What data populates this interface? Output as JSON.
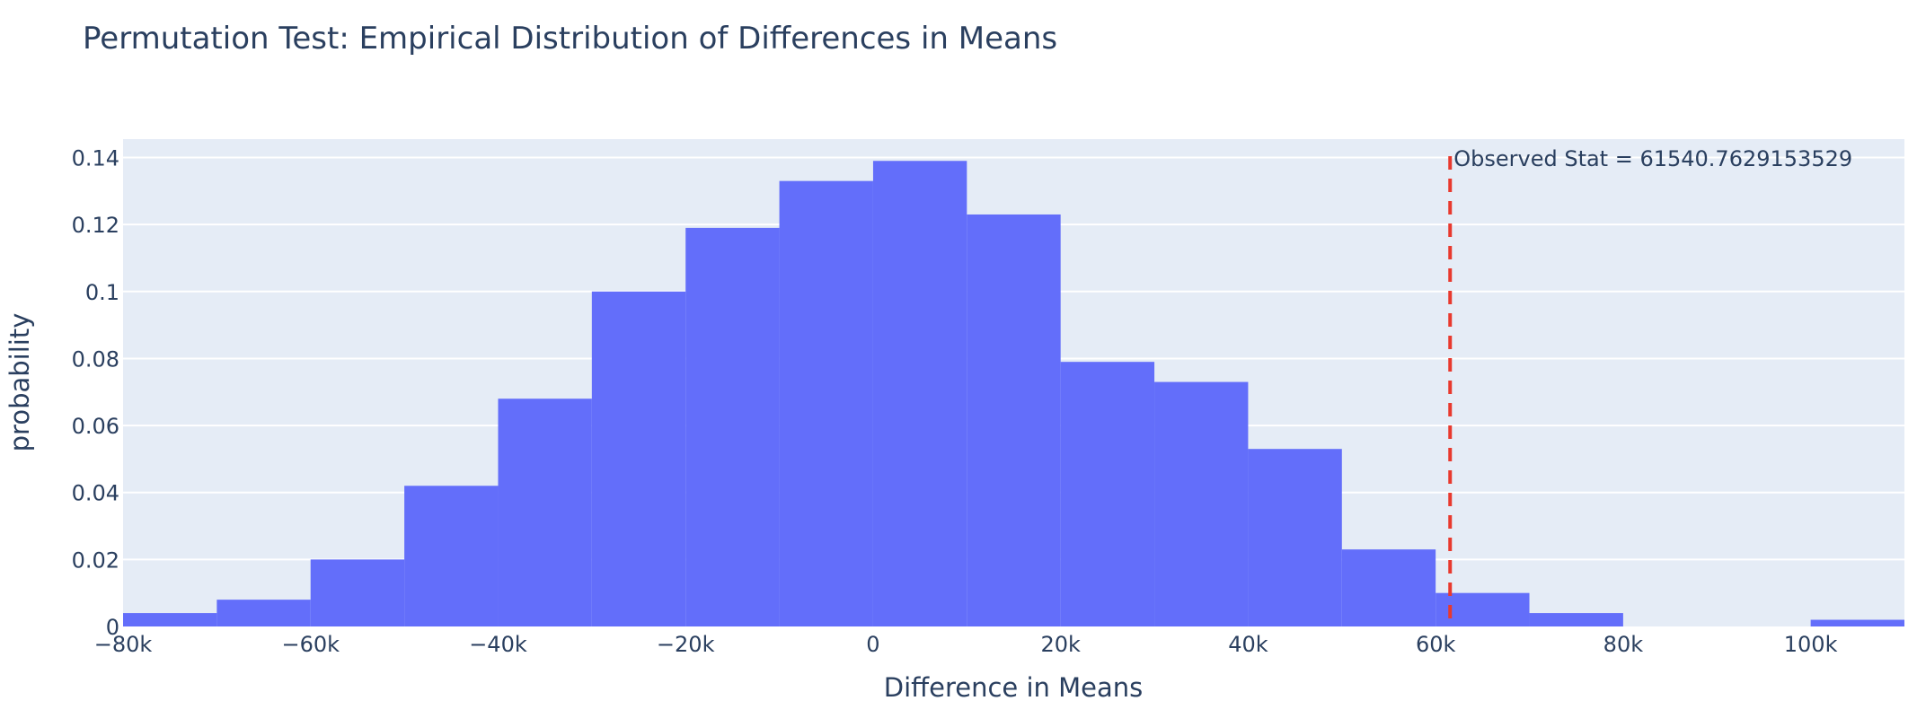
{
  "chart_data": {
    "type": "bar",
    "title": "Permutation Test: Empirical Distribution of Differences in Means",
    "xlabel": "Difference in Means",
    "ylabel": "probability",
    "xlim": [
      -80000,
      110000
    ],
    "ylim": [
      0,
      0.1455
    ],
    "bin_width": 10000,
    "bins": [
      {
        "start": -80000,
        "end": -70000,
        "value": 0.004
      },
      {
        "start": -70000,
        "end": -60000,
        "value": 0.008
      },
      {
        "start": -60000,
        "end": -50000,
        "value": 0.02
      },
      {
        "start": -50000,
        "end": -40000,
        "value": 0.042
      },
      {
        "start": -40000,
        "end": -30000,
        "value": 0.068
      },
      {
        "start": -30000,
        "end": -20000,
        "value": 0.1
      },
      {
        "start": -20000,
        "end": -10000,
        "value": 0.119
      },
      {
        "start": -10000,
        "end": 0,
        "value": 0.133
      },
      {
        "start": 0,
        "end": 10000,
        "value": 0.139
      },
      {
        "start": 10000,
        "end": 20000,
        "value": 0.123
      },
      {
        "start": 20000,
        "end": 30000,
        "value": 0.079
      },
      {
        "start": 30000,
        "end": 40000,
        "value": 0.073
      },
      {
        "start": 40000,
        "end": 50000,
        "value": 0.053
      },
      {
        "start": 50000,
        "end": 60000,
        "value": 0.023
      },
      {
        "start": 60000,
        "end": 70000,
        "value": 0.01
      },
      {
        "start": 70000,
        "end": 80000,
        "value": 0.004
      },
      {
        "start": 100000,
        "end": 110000,
        "value": 0.002
      }
    ],
    "x_ticks": [
      {
        "value": -80000,
        "label": "−80k"
      },
      {
        "value": -60000,
        "label": "−60k"
      },
      {
        "value": -40000,
        "label": "−40k"
      },
      {
        "value": -20000,
        "label": "−20k"
      },
      {
        "value": 0,
        "label": "0"
      },
      {
        "value": 20000,
        "label": "20k"
      },
      {
        "value": 40000,
        "label": "40k"
      },
      {
        "value": 60000,
        "label": "60k"
      },
      {
        "value": 80000,
        "label": "80k"
      },
      {
        "value": 100000,
        "label": "100k"
      }
    ],
    "y_ticks": [
      {
        "value": 0,
        "label": "0"
      },
      {
        "value": 0.02,
        "label": "0.02"
      },
      {
        "value": 0.04,
        "label": "0.04"
      },
      {
        "value": 0.06,
        "label": "0.06"
      },
      {
        "value": 0.08,
        "label": "0.08"
      },
      {
        "value": 0.1,
        "label": "0.1"
      },
      {
        "value": 0.12,
        "label": "0.12"
      },
      {
        "value": 0.14,
        "label": "0.14"
      }
    ],
    "observed": {
      "value": 61540.7629153529,
      "label": "Observed Stat = 61540.7629153529",
      "color": "#e8392e",
      "style": "dashed"
    },
    "colors": {
      "bar": "#636efa",
      "plot_background": "#e5ecf6",
      "grid": "#ffffff",
      "text": "#2a3f5f"
    },
    "grid": true,
    "legend": false
  }
}
